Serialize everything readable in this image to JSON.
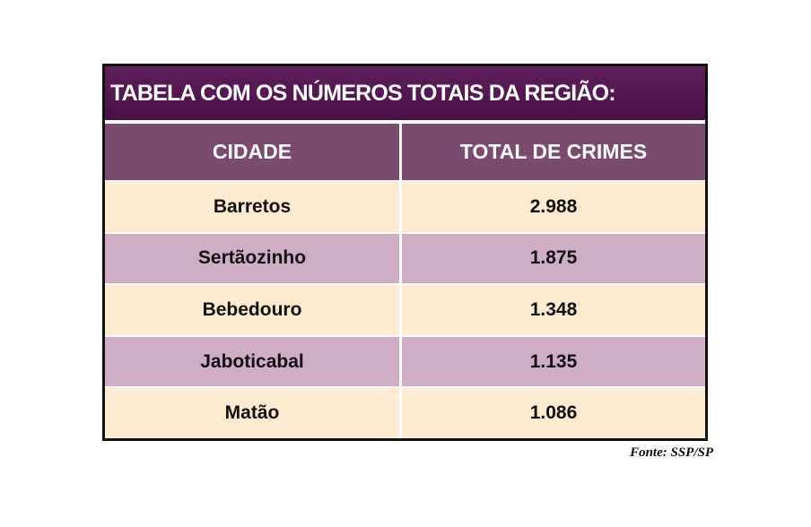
{
  "table": {
    "title": "TABELA COM OS NÚMEROS TOTAIS DA REGIÃO:",
    "headers": [
      "CIDADE",
      "TOTAL DE CRIMES"
    ],
    "rows": [
      [
        "Barretos",
        "2.988"
      ],
      [
        "Sertãozinho",
        "1.875"
      ],
      [
        "Bebedouro",
        "1.348"
      ],
      [
        "Jaboticabal",
        "1.135"
      ],
      [
        "Matão",
        "1.086"
      ]
    ]
  },
  "source": "Fonte: SSP/SP",
  "colors": {
    "title_bg": "#4a0f47",
    "header_bg": "#7a4a6f",
    "row_light": "#fcebd0",
    "row_dark": "#cfadc5"
  }
}
